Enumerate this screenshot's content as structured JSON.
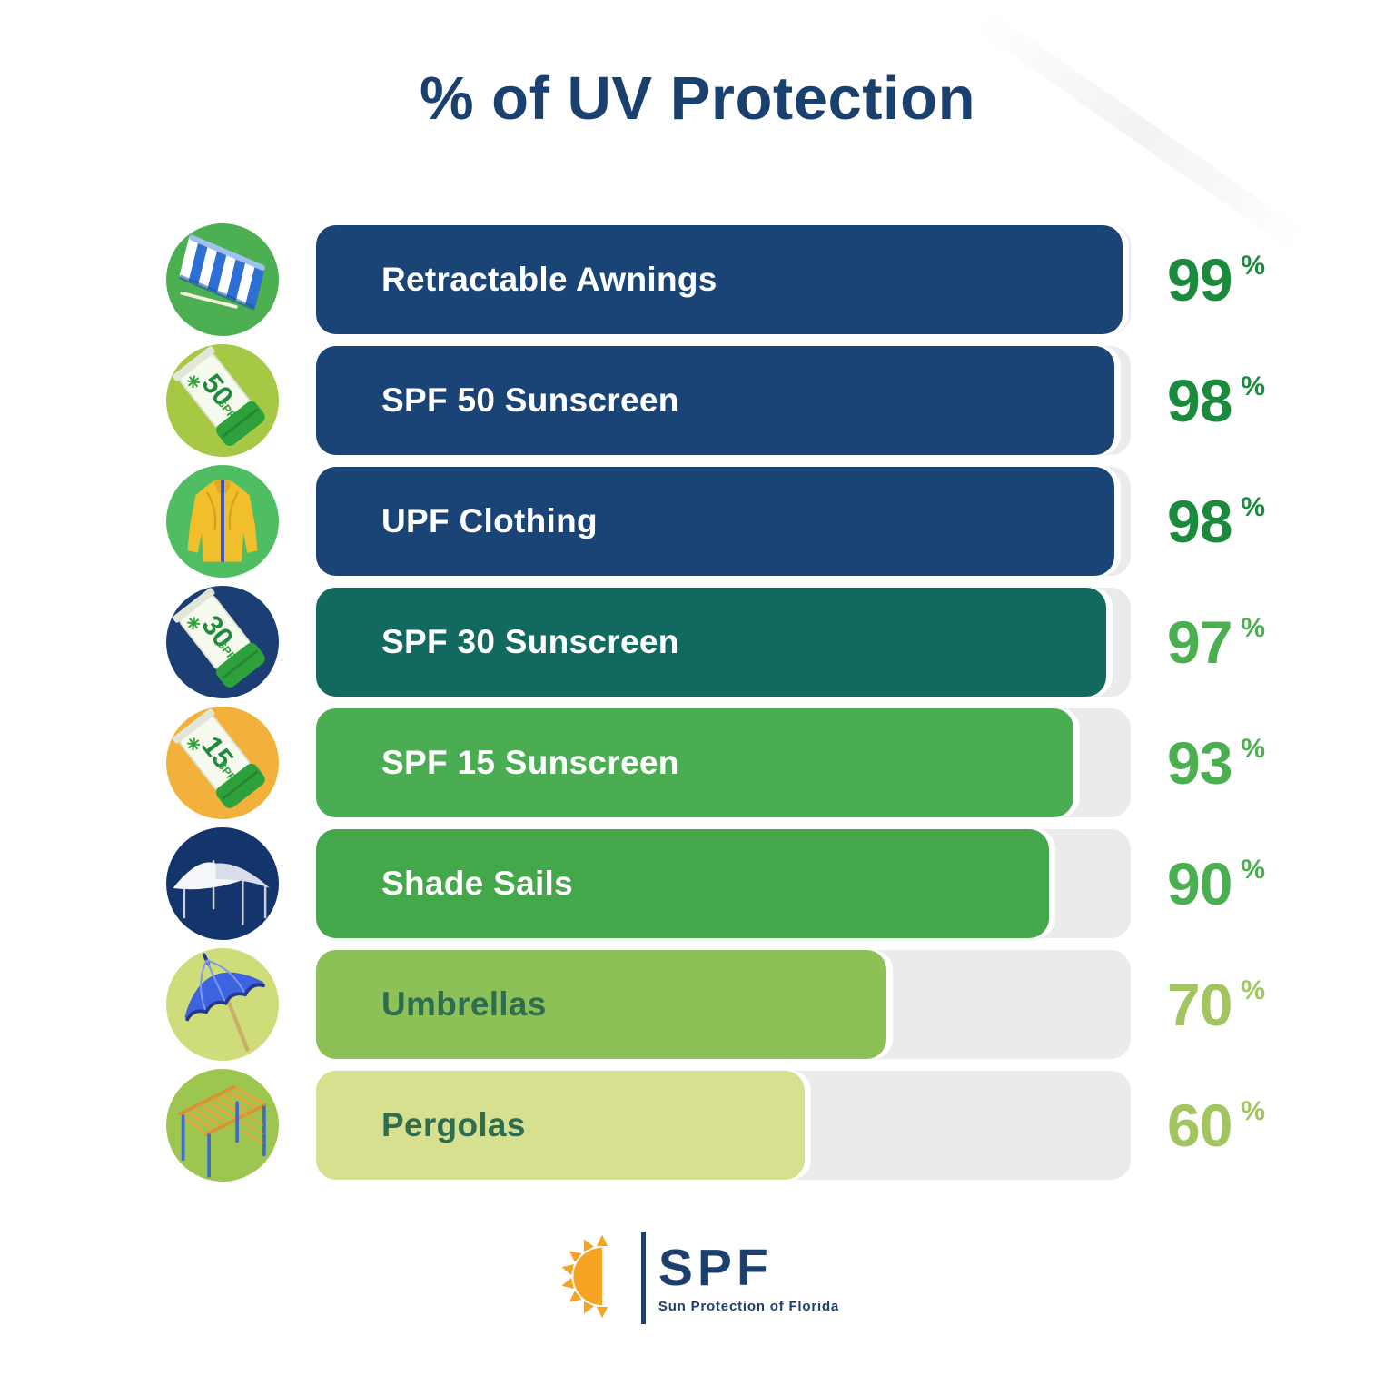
{
  "title": "% of UV Protection",
  "chart_data": {
    "type": "bar",
    "orientation": "horizontal",
    "title": "% of UV Protection",
    "unit": "%",
    "xlim": [
      0,
      100
    ],
    "grid": false,
    "legend": false,
    "categories": [
      "Retractable Awnings",
      "SPF 50 Sunscreen",
      "UPF Clothing",
      "SPF 30 Sunscreen",
      "SPF 15 Sunscreen",
      "Shade Sails",
      "Umbrellas",
      "Pergolas"
    ],
    "values": [
      99,
      98,
      98,
      97,
      93,
      90,
      70,
      60
    ]
  },
  "track_color": "#EBEBEC",
  "rows": [
    {
      "label": "Retractable Awnings",
      "value": 99,
      "icon": "awning-icon",
      "icon_bg": "#4CB052",
      "bar_color": "#1B4476",
      "label_color": "#FFFFFF",
      "value_color": "#1B8A3C"
    },
    {
      "label": "SPF 50 Sunscreen",
      "value": 98,
      "icon": "spf50-tube-icon",
      "icon_text": "50",
      "icon_sub": "SPF",
      "icon_bg": "#A6C844",
      "bar_color": "#1B4476",
      "label_color": "#FFFFFF",
      "value_color": "#1B8A3C"
    },
    {
      "label": "UPF Clothing",
      "value": 98,
      "icon": "upf-clothing-icon",
      "icon_bg": "#4FBE63",
      "bar_color": "#1B4476",
      "label_color": "#FFFFFF",
      "value_color": "#1B8A3C"
    },
    {
      "label": "SPF 30 Sunscreen",
      "value": 97,
      "icon": "spf30-tube-icon",
      "icon_text": "30",
      "icon_sub": "SPF",
      "icon_bg": "#1B3F74",
      "bar_color": "#11695F",
      "label_color": "#FFFFFF",
      "value_color": "#4BAE51"
    },
    {
      "label": "SPF 15 Sunscreen",
      "value": 93,
      "icon": "spf15-tube-icon",
      "icon_text": "15",
      "icon_sub": "SPF",
      "icon_bg": "#F2B13A",
      "bar_color": "#4AAD52",
      "label_color": "#FFFFFF",
      "value_color": "#4BAE51"
    },
    {
      "label": "Shade Sails",
      "value": 90,
      "icon": "shade-sail-icon",
      "icon_bg": "#14356B",
      "bar_color": "#44A84B",
      "label_color": "#FFFFFF",
      "value_color": "#4BAE51"
    },
    {
      "label": "Umbrellas",
      "value": 70,
      "icon": "umbrella-icon",
      "icon_bg": "#CFDC7A",
      "bar_color": "#8DC157",
      "label_color": "#2E6D50",
      "value_color": "#A2C55F"
    },
    {
      "label": "Pergolas",
      "value": 60,
      "icon": "pergola-icon",
      "icon_bg": "#9CC64F",
      "bar_color": "#D6E08E",
      "label_color": "#2E6D50",
      "value_color": "#A2C55F"
    }
  ],
  "logo": {
    "name": "SPF",
    "tagline": "Sun Protection of Florida",
    "sun_color": "#F6A323",
    "text_color": "#1C3F6E"
  }
}
